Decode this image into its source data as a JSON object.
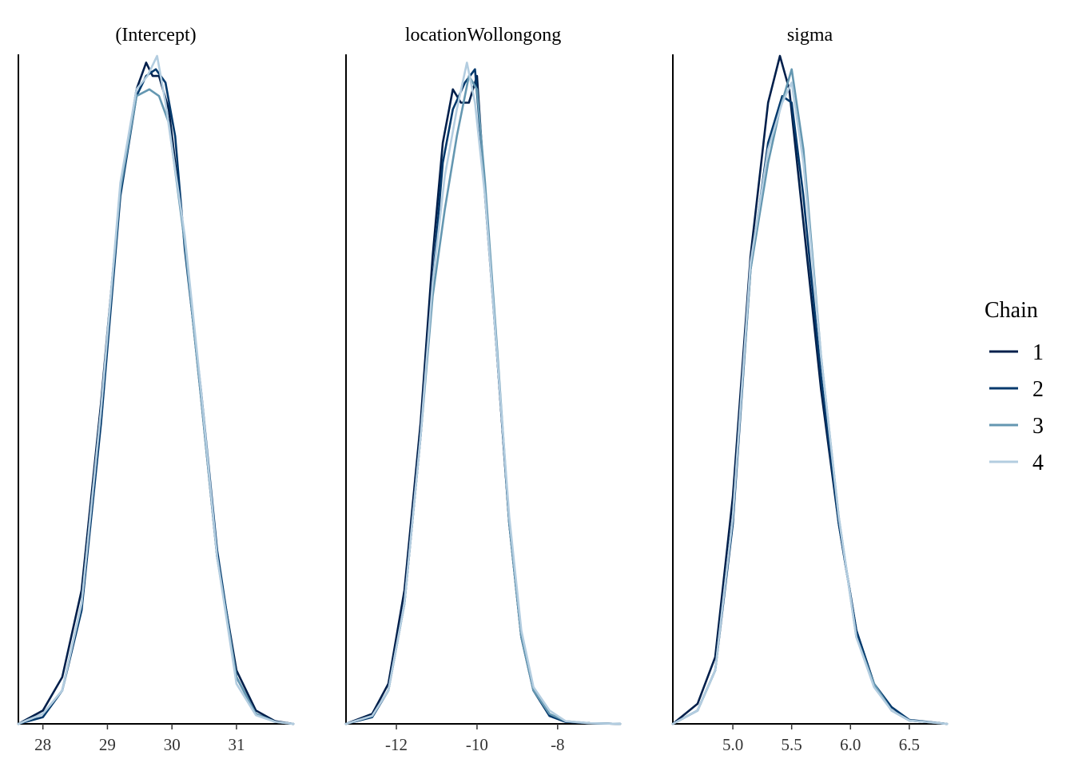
{
  "chart_data": [
    {
      "type": "line",
      "title": "(Intercept)",
      "xlim": [
        27.62,
        31.88
      ],
      "xticks": [
        28,
        29,
        30,
        31
      ],
      "xtick_labels": [
        "28",
        "29",
        "30",
        "31"
      ],
      "series": [
        {
          "name": "1",
          "x": [
            27.62,
            28.0,
            28.3,
            28.6,
            28.9,
            29.2,
            29.45,
            29.6,
            29.7,
            29.8,
            29.95,
            30.2,
            30.45,
            30.7,
            31.0,
            31.3,
            31.6,
            31.88
          ],
          "y": [
            0.0,
            0.02,
            0.07,
            0.2,
            0.48,
            0.8,
            0.95,
            0.99,
            0.97,
            0.97,
            0.92,
            0.72,
            0.49,
            0.25,
            0.08,
            0.02,
            0.004,
            0.0
          ]
        },
        {
          "name": "2",
          "x": [
            27.62,
            28.0,
            28.3,
            28.6,
            28.9,
            29.2,
            29.45,
            29.6,
            29.75,
            29.9,
            30.05,
            30.2,
            30.45,
            30.7,
            31.0,
            31.3,
            31.6,
            31.88
          ],
          "y": [
            0.0,
            0.01,
            0.05,
            0.17,
            0.45,
            0.79,
            0.94,
            0.97,
            0.98,
            0.96,
            0.88,
            0.71,
            0.5,
            0.26,
            0.07,
            0.015,
            0.003,
            0.0
          ]
        },
        {
          "name": "3",
          "x": [
            27.62,
            28.0,
            28.3,
            28.6,
            28.9,
            29.2,
            29.45,
            29.65,
            29.8,
            29.95,
            30.2,
            30.45,
            30.7,
            31.0,
            31.3,
            31.6,
            31.88
          ],
          "y": [
            0.0,
            0.015,
            0.05,
            0.18,
            0.47,
            0.8,
            0.94,
            0.95,
            0.94,
            0.9,
            0.72,
            0.49,
            0.25,
            0.07,
            0.015,
            0.003,
            0.0
          ]
        },
        {
          "name": "4",
          "x": [
            27.62,
            28.0,
            28.3,
            28.6,
            28.9,
            29.2,
            29.45,
            29.62,
            29.77,
            29.9,
            30.2,
            30.45,
            30.7,
            31.0,
            31.3,
            31.6,
            31.88
          ],
          "y": [
            0.0,
            0.015,
            0.05,
            0.18,
            0.47,
            0.81,
            0.95,
            0.97,
            1.0,
            0.93,
            0.73,
            0.5,
            0.25,
            0.06,
            0.013,
            0.003,
            0.0
          ]
        }
      ]
    },
    {
      "type": "line",
      "title": "locationWollongong",
      "xlim": [
        -13.25,
        -6.45
      ],
      "xticks": [
        -12,
        -10,
        -8
      ],
      "xtick_labels": [
        "-12",
        "-10",
        "-8"
      ],
      "series": [
        {
          "name": "1",
          "x": [
            -13.25,
            -12.6,
            -12.2,
            -11.8,
            -11.4,
            -11.1,
            -10.85,
            -10.6,
            -10.4,
            -10.2,
            -10.0,
            -9.8,
            -9.5,
            -9.2,
            -8.9,
            -8.6,
            -8.2,
            -7.8,
            -7.2,
            -6.45
          ],
          "y": [
            0.0,
            0.015,
            0.06,
            0.2,
            0.45,
            0.7,
            0.87,
            0.95,
            0.93,
            0.93,
            0.97,
            0.79,
            0.55,
            0.3,
            0.13,
            0.05,
            0.012,
            0.003,
            0.001,
            0.0
          ]
        },
        {
          "name": "2",
          "x": [
            -13.25,
            -12.6,
            -12.2,
            -11.8,
            -11.4,
            -11.1,
            -10.85,
            -10.6,
            -10.3,
            -10.05,
            -9.8,
            -9.5,
            -9.2,
            -8.9,
            -8.6,
            -8.2,
            -7.8,
            -7.2,
            -6.45
          ],
          "y": [
            0.0,
            0.01,
            0.05,
            0.18,
            0.43,
            0.66,
            0.84,
            0.92,
            0.96,
            0.98,
            0.8,
            0.55,
            0.3,
            0.13,
            0.05,
            0.012,
            0.003,
            0.001,
            0.0
          ]
        },
        {
          "name": "3",
          "x": [
            -13.25,
            -12.6,
            -12.2,
            -11.8,
            -11.4,
            -11.1,
            -10.8,
            -10.5,
            -10.2,
            -10.0,
            -9.8,
            -9.5,
            -9.2,
            -8.9,
            -8.6,
            -8.2,
            -7.8,
            -7.2,
            -6.45
          ],
          "y": [
            0.0,
            0.012,
            0.05,
            0.18,
            0.43,
            0.64,
            0.77,
            0.88,
            0.97,
            0.95,
            0.81,
            0.56,
            0.3,
            0.13,
            0.05,
            0.015,
            0.004,
            0.001,
            0.0
          ]
        },
        {
          "name": "4",
          "x": [
            -13.25,
            -12.6,
            -12.2,
            -11.8,
            -11.4,
            -11.1,
            -10.8,
            -10.5,
            -10.25,
            -10.05,
            -9.8,
            -9.5,
            -9.2,
            -8.9,
            -8.6,
            -8.2,
            -7.8,
            -7.2,
            -6.45
          ],
          "y": [
            0.0,
            0.012,
            0.05,
            0.18,
            0.43,
            0.66,
            0.82,
            0.92,
            0.99,
            0.93,
            0.79,
            0.55,
            0.31,
            0.14,
            0.055,
            0.02,
            0.004,
            0.001,
            0.0
          ]
        }
      ]
    },
    {
      "type": "line",
      "title": "sigma",
      "xlim": [
        4.49,
        6.82
      ],
      "xticks": [
        5.0,
        5.5,
        6.0,
        6.5
      ],
      "xtick_labels": [
        "5.0",
        "5.5",
        "6.0",
        "6.5"
      ],
      "series": [
        {
          "name": "1",
          "x": [
            4.49,
            4.7,
            4.85,
            5.0,
            5.15,
            5.3,
            5.4,
            5.48,
            5.6,
            5.75,
            5.9,
            6.05,
            6.2,
            6.35,
            6.5,
            6.82
          ],
          "y": [
            0.0,
            0.03,
            0.1,
            0.34,
            0.7,
            0.93,
            1.0,
            0.95,
            0.75,
            0.5,
            0.3,
            0.14,
            0.06,
            0.02,
            0.005,
            0.0
          ]
        },
        {
          "name": "2",
          "x": [
            4.49,
            4.7,
            4.85,
            5.0,
            5.15,
            5.3,
            5.42,
            5.5,
            5.6,
            5.75,
            5.9,
            6.05,
            6.2,
            6.35,
            6.5,
            6.82
          ],
          "y": [
            0.0,
            0.02,
            0.08,
            0.3,
            0.68,
            0.87,
            0.94,
            0.93,
            0.79,
            0.52,
            0.3,
            0.14,
            0.06,
            0.025,
            0.006,
            0.0
          ]
        },
        {
          "name": "3",
          "x": [
            4.49,
            4.7,
            4.85,
            5.0,
            5.15,
            5.3,
            5.4,
            5.5,
            5.6,
            5.75,
            5.9,
            6.05,
            6.2,
            6.35,
            6.5,
            6.82
          ],
          "y": [
            0.0,
            0.02,
            0.08,
            0.31,
            0.68,
            0.84,
            0.92,
            0.98,
            0.86,
            0.55,
            0.31,
            0.13,
            0.06,
            0.02,
            0.005,
            0.0
          ]
        },
        {
          "name": "4",
          "x": [
            4.49,
            4.7,
            4.85,
            5.0,
            5.15,
            5.3,
            5.42,
            5.5,
            5.6,
            5.75,
            5.9,
            6.05,
            6.2,
            6.35,
            6.5,
            6.82
          ],
          "y": [
            0.0,
            0.02,
            0.08,
            0.31,
            0.69,
            0.86,
            0.93,
            0.96,
            0.84,
            0.55,
            0.31,
            0.13,
            0.055,
            0.02,
            0.005,
            0.0
          ]
        }
      ]
    }
  ],
  "legend": {
    "title": "Chain",
    "placement": "right",
    "items": [
      {
        "label": "1",
        "color": "#011f4b"
      },
      {
        "label": "2",
        "color": "#03396c"
      },
      {
        "label": "3",
        "color": "#6497b1"
      },
      {
        "label": "4",
        "color": "#b3cde0"
      }
    ]
  },
  "series_colors": [
    "#011f4b",
    "#03396c",
    "#6497b1",
    "#b3cde0"
  ],
  "grid": false
}
